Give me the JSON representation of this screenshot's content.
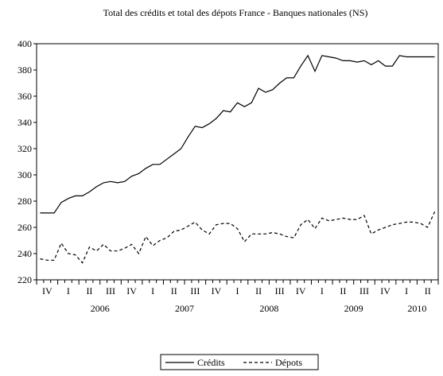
{
  "chart_data": {
    "type": "line",
    "title": "Total des crédits et total des dépots France - Banques nationales (NS)",
    "quarters": [
      "IV",
      "I",
      "II",
      "III",
      "IV",
      "I",
      "II",
      "III",
      "IV",
      "I",
      "II",
      "III",
      "IV",
      "I",
      "II",
      "III",
      "IV",
      "I",
      "II"
    ],
    "years": [
      "2006",
      "2007",
      "2008",
      "2009",
      "2010"
    ],
    "ylim": [
      220,
      400
    ],
    "yticks": [
      220,
      240,
      260,
      280,
      300,
      320,
      340,
      360,
      380,
      400
    ],
    "legend": "bottom",
    "series": [
      {
        "name": "Crédits",
        "color": "#000000",
        "dash": "solid",
        "values": [
          271,
          271,
          271,
          279,
          282,
          284,
          284,
          287,
          291,
          294,
          295,
          294,
          295,
          299,
          301,
          305,
          308,
          308,
          312,
          316,
          320,
          329,
          337,
          336,
          339,
          343,
          349,
          348,
          355,
          352,
          355,
          366,
          363,
          365,
          370,
          374,
          374,
          383,
          391,
          379,
          391,
          390,
          389,
          387,
          387,
          386,
          387,
          384,
          387,
          383,
          383,
          391,
          390,
          390,
          390,
          390,
          390
        ]
      },
      {
        "name": "Dépots",
        "color": "#000000",
        "dash": "dashed",
        "values": [
          236,
          235,
          235,
          248,
          240,
          239,
          233,
          245,
          242,
          247,
          242,
          242,
          244,
          247,
          240,
          253,
          246,
          250,
          252,
          257,
          258,
          261,
          264,
          258,
          255,
          262,
          263,
          263,
          259,
          249,
          255,
          255,
          255,
          256,
          255,
          253,
          252,
          262,
          266,
          259,
          267,
          265,
          266,
          267,
          266,
          266,
          269,
          255,
          258,
          260,
          262,
          263,
          264,
          264,
          263,
          260,
          272
        ]
      }
    ]
  }
}
